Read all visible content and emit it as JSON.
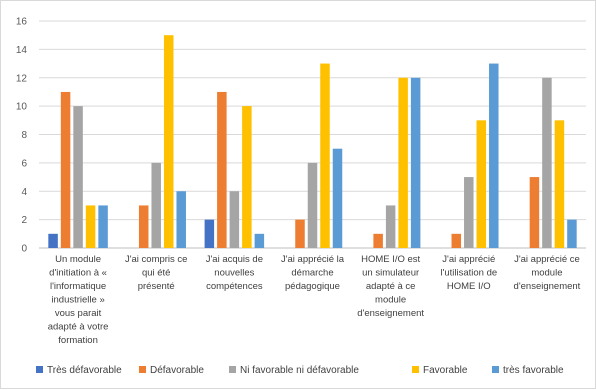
{
  "chart_data": {
    "type": "bar",
    "categories": [
      [
        "Un module",
        "d'initiation à «",
        "l'informatique",
        "industrielle »",
        "vous parait",
        "adapté à votre",
        "formation"
      ],
      [
        "J'ai compris ce",
        "qui été",
        "présenté"
      ],
      [
        "J'ai acquis de",
        "nouvelles",
        "compétences"
      ],
      [
        "J'ai apprécié la",
        "démarche",
        "pédagogique"
      ],
      [
        "HOME I/O est",
        "un simulateur",
        "adapté à ce",
        "module",
        "d'enseignement"
      ],
      [
        "J'ai apprécié",
        "l'utilisation de",
        "HOME I/O"
      ],
      [
        "J'ai apprécié ce",
        "module",
        "d'enseignement"
      ]
    ],
    "series": [
      {
        "name": "Très défavorable",
        "color": "#4472c4",
        "values": [
          1,
          0,
          2,
          0,
          0,
          0,
          0
        ]
      },
      {
        "name": "Défavorable",
        "color": "#ed7d31",
        "values": [
          11,
          3,
          11,
          2,
          1,
          1,
          5
        ]
      },
      {
        "name": "Ni favorable ni défavorable",
        "color": "#a5a5a5",
        "values": [
          10,
          6,
          4,
          6,
          3,
          5,
          12
        ]
      },
      {
        "name": "Favorable",
        "color": "#ffc000",
        "values": [
          3,
          15,
          10,
          13,
          12,
          9,
          9
        ]
      },
      {
        "name": "très favorable",
        "color": "#5b9bd5",
        "values": [
          3,
          4,
          1,
          7,
          12,
          13,
          2
        ]
      }
    ],
    "y_ticks": [
      0,
      2,
      4,
      6,
      8,
      10,
      12,
      14,
      16
    ],
    "ylim": [
      0,
      16
    ],
    "grid": true,
    "legend_position": "bottom"
  }
}
